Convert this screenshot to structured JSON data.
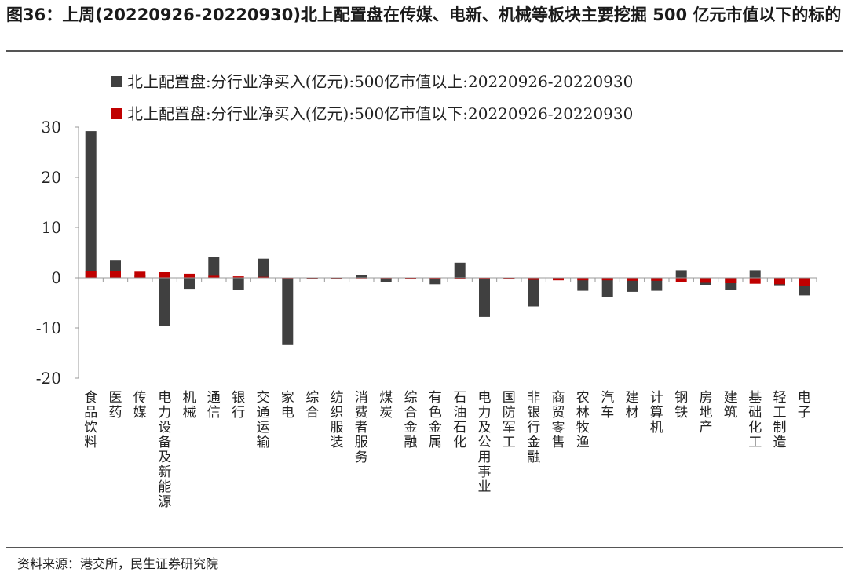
{
  "figure": {
    "title": "图36：上周(20220926-20220930)北上配置盘在传媒、电新、机械等板块主要挖掘 500 亿元市值以下的标的",
    "source": "资料来源：港交所，民生证券研究院"
  },
  "chart_data": {
    "type": "bar",
    "title": "",
    "xlabel": "",
    "ylabel": "",
    "ylim": [
      -20,
      30
    ],
    "yticks": [
      -20,
      -10,
      0,
      10,
      20,
      30
    ],
    "grid": false,
    "legend_position": "top-left",
    "categories": [
      "食品饮料",
      "医药",
      "传媒",
      "电力设备及新能源",
      "机械",
      "通信",
      "银行",
      "交通运输",
      "家电",
      "综合",
      "纺织服装",
      "消费者服务",
      "煤炭",
      "综合金融",
      "有色金属",
      "石油石化",
      "电力及公用事业",
      "国防军工",
      "非银行金融",
      "商贸零售",
      "农林牧渔",
      "汽车",
      "建材",
      "计算机",
      "钢铁",
      "房地产",
      "建筑",
      "基础化工",
      "轻工制造",
      "电子"
    ],
    "series": [
      {
        "name": "北上配置盘:分行业净买入(亿元):500亿市值以上:20220926-20220930",
        "color": "#404040",
        "values": [
          29.2,
          3.4,
          0.6,
          -9.6,
          -2.2,
          4.2,
          -2.5,
          3.8,
          -13.4,
          -0.2,
          -0.2,
          0.5,
          -0.8,
          -0.3,
          -1.3,
          3.0,
          -7.8,
          -0.3,
          -5.7,
          -0.2,
          -2.6,
          -3.8,
          -2.8,
          -2.6,
          1.5,
          -1.4,
          -2.5,
          1.5,
          -1.5,
          -3.5
        ]
      },
      {
        "name": "北上配置盘:分行业净买入(亿元):500亿市值以下:20220926-20220930",
        "color": "#c00000",
        "values": [
          1.4,
          1.3,
          1.2,
          1.1,
          0.8,
          0.4,
          0.3,
          0.2,
          0.0,
          -0.1,
          -0.1,
          -0.1,
          -0.1,
          -0.2,
          -0.2,
          -0.3,
          -0.3,
          -0.3,
          -0.4,
          -0.5,
          -0.5,
          -0.5,
          -0.6,
          -0.6,
          -0.9,
          -1.0,
          -1.1,
          -1.2,
          -1.3,
          -1.6
        ]
      }
    ]
  }
}
